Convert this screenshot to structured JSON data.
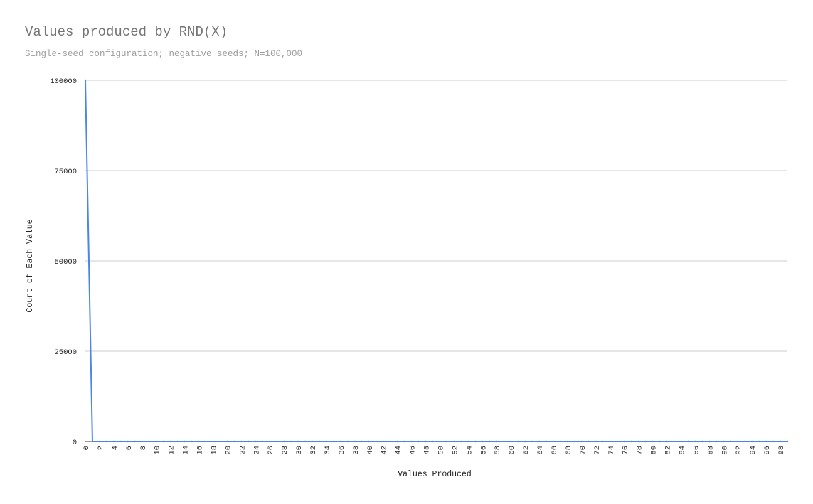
{
  "chart_data": {
    "type": "line",
    "title": "Values produced by RND(X)",
    "subtitle": "Single-seed configuration; negative seeds; N=100,000",
    "xlabel": "Values Produced",
    "ylabel": "Count of Each Value",
    "x_range": [
      0,
      99
    ],
    "ylim": [
      0,
      100000
    ],
    "y_ticks": [
      0,
      25000,
      50000,
      75000,
      100000
    ],
    "x_tick_step": 2,
    "grid": true,
    "legend": "none",
    "series": [
      {
        "color": "#4a86e8",
        "x": [
          0,
          1,
          2,
          3,
          4,
          5,
          6,
          7,
          8,
          9,
          10,
          11,
          12,
          13,
          14,
          15,
          16,
          17,
          18,
          19,
          20,
          21,
          22,
          23,
          24,
          25,
          26,
          27,
          28,
          29,
          30,
          31,
          32,
          33,
          34,
          35,
          36,
          37,
          38,
          39,
          40,
          41,
          42,
          43,
          44,
          45,
          46,
          47,
          48,
          49,
          50,
          51,
          52,
          53,
          54,
          55,
          56,
          57,
          58,
          59,
          60,
          61,
          62,
          63,
          64,
          65,
          66,
          67,
          68,
          69,
          70,
          71,
          72,
          73,
          74,
          75,
          76,
          77,
          78,
          79,
          80,
          81,
          82,
          83,
          84,
          85,
          86,
          87,
          88,
          89,
          90,
          91,
          92,
          93,
          94,
          95,
          96,
          97,
          98,
          99
        ],
        "values": [
          100000,
          0,
          0,
          0,
          0,
          0,
          0,
          0,
          0,
          0,
          0,
          0,
          0,
          0,
          0,
          0,
          0,
          0,
          0,
          0,
          0,
          0,
          0,
          0,
          0,
          0,
          0,
          0,
          0,
          0,
          0,
          0,
          0,
          0,
          0,
          0,
          0,
          0,
          0,
          0,
          0,
          0,
          0,
          0,
          0,
          0,
          0,
          0,
          0,
          0,
          0,
          0,
          0,
          0,
          0,
          0,
          0,
          0,
          0,
          0,
          0,
          0,
          0,
          0,
          0,
          0,
          0,
          0,
          0,
          0,
          0,
          0,
          0,
          0,
          0,
          0,
          0,
          0,
          0,
          0,
          0,
          0,
          0,
          0,
          0,
          0,
          0,
          0,
          0,
          0,
          0,
          0,
          0,
          0,
          0,
          0,
          0,
          0,
          0,
          0
        ]
      }
    ]
  }
}
